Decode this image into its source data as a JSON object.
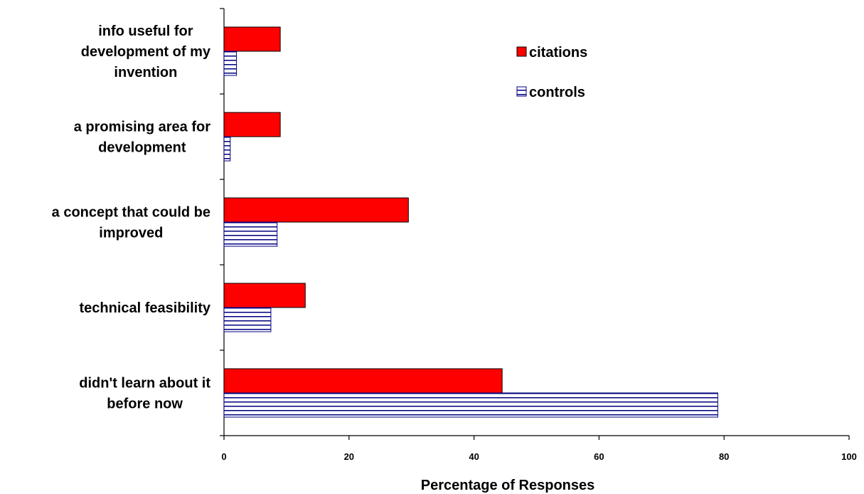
{
  "chart_data": {
    "type": "bar",
    "orientation": "horizontal",
    "categories": [
      [
        "info useful for",
        "development of my",
        "invention"
      ],
      [
        "a promising area for",
        "development"
      ],
      [
        "a concept that could be",
        "improved"
      ],
      [
        "technical feasibility"
      ],
      [
        "didn't learn about it",
        "before now"
      ]
    ],
    "series": [
      {
        "name": "citations",
        "values": [
          9,
          9,
          29.5,
          13,
          44.5
        ],
        "color": "#ff0000",
        "pattern": "solid"
      },
      {
        "name": "controls",
        "values": [
          2,
          1,
          8.5,
          7.5,
          79
        ],
        "color": "#000080",
        "pattern": "horizontal-stripes"
      }
    ],
    "xlabel": "Percentage of Responses",
    "xlim": [
      0,
      100
    ],
    "xticks": [
      "0",
      "20",
      "40",
      "60",
      "80",
      "100"
    ],
    "grid": false,
    "legend": "top-right"
  }
}
